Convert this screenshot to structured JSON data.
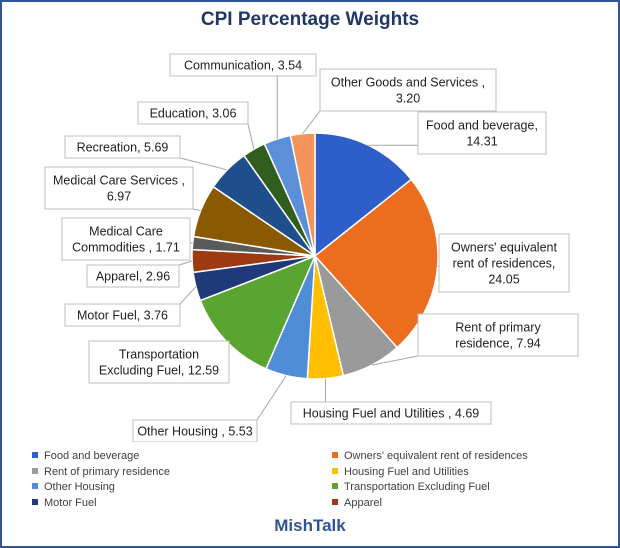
{
  "chart_data": {
    "type": "pie",
    "title": "CPI Percentage Weights",
    "slices": [
      {
        "label": "Food and beverage",
        "callout": [
          "Food and beverage,",
          "14.31"
        ],
        "value": 14.31,
        "color": "#2e5fc9"
      },
      {
        "label": "Owners' equivalent rent of residences",
        "callout": [
          "Owners' equivalent",
          "rent of residences,",
          "24.05"
        ],
        "value": 24.05,
        "color": "#ed6d1f"
      },
      {
        "label": "Rent of primary residence",
        "callout": [
          "Rent of primary",
          "residence, 7.94"
        ],
        "value": 7.94,
        "color": "#9a9a9a"
      },
      {
        "label": "Housing Fuel and Utilities",
        "callout": [
          "Housing Fuel and Utilities , 4.69"
        ],
        "value": 4.69,
        "color": "#ffbf00"
      },
      {
        "label": "Other Housing",
        "callout": [
          "Other Housing , 5.53"
        ],
        "value": 5.53,
        "color": "#4f8ed6"
      },
      {
        "label": "Transportation Excluding Fuel",
        "callout": [
          "Transportation",
          "Excluding Fuel, 12.59"
        ],
        "value": 12.59,
        "color": "#5aa532"
      },
      {
        "label": "Motor Fuel",
        "callout": [
          "Motor Fuel, 3.76"
        ],
        "value": 3.76,
        "color": "#1f3979"
      },
      {
        "label": "Apparel",
        "callout": [
          "Apparel, 2.96"
        ],
        "value": 2.96,
        "color": "#9e3a12"
      },
      {
        "label": "Medical Care Commodities",
        "callout": [
          "Medical Care",
          "Commodities , 1.71"
        ],
        "value": 1.71,
        "color": "#5a5a5a"
      },
      {
        "label": "Medical Care Services",
        "callout": [
          "Medical Care Services ,",
          "6.97"
        ],
        "value": 6.97,
        "color": "#8a5a00"
      },
      {
        "label": "Recreation",
        "callout": [
          "Recreation, 5.69"
        ],
        "value": 5.69,
        "color": "#1f4e8c"
      },
      {
        "label": "Education",
        "callout": [
          "Education, 3.06"
        ],
        "value": 3.06,
        "color": "#2f5e1e"
      },
      {
        "label": "Communication",
        "callout": [
          "Communication, 3.54"
        ],
        "value": 3.54,
        "color": "#5b8fd8"
      },
      {
        "label": "Other Goods and Services",
        "callout": [
          "Other Goods and Services ,",
          "3.20"
        ],
        "value": 3.2,
        "color": "#f4935a"
      }
    ],
    "legend": {
      "placement": "bottom",
      "entries": [
        {
          "label": "Food and beverage",
          "color": "#2e5fc9"
        },
        {
          "label": "Owners' equivalent rent of residences",
          "color": "#ed6d1f"
        },
        {
          "label": "Rent of primary residence",
          "color": "#9a9a9a"
        },
        {
          "label": "Housing Fuel and Utilities",
          "color": "#ffbf00"
        },
        {
          "label": "Other Housing",
          "color": "#4f8ed6"
        },
        {
          "label": "Transportation Excluding Fuel",
          "color": "#5aa532"
        },
        {
          "label": "Motor Fuel",
          "color": "#1f3979"
        },
        {
          "label": "Apparel",
          "color": "#9e3a12"
        }
      ]
    },
    "brand": "MishTalk"
  }
}
